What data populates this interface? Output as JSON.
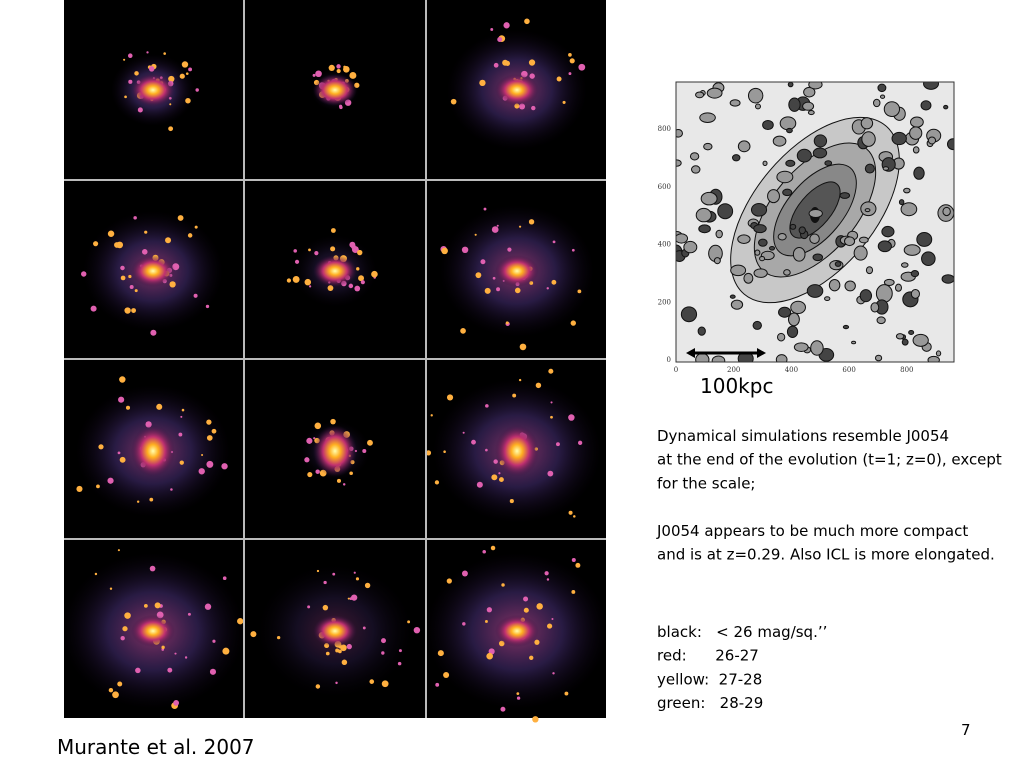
{
  "slide": {
    "citation": "Murante et al. 2007",
    "page_number": "7",
    "contour_plot": {
      "x_ticks": [
        "0",
        "200",
        "400",
        "600",
        "800"
      ],
      "y_ticks": [
        "0",
        "200",
        "400",
        "600",
        "800"
      ],
      "scale_label": "100kpc"
    },
    "text": {
      "paragraph_1": [
        "Dynamical simulations resemble J0054",
        "at the end of the evolution (t=1; z=0), except",
        "for the scale;"
      ],
      "paragraph_2": [
        "J0054 appears to be much more compact",
        "and is at z=0.29. Also ICL is more elongated."
      ],
      "legend": [
        "black:   < 26 mag/sq.’’",
        "red:      26-27",
        "yellow:  27-28",
        "green:   28-29"
      ]
    }
  }
}
